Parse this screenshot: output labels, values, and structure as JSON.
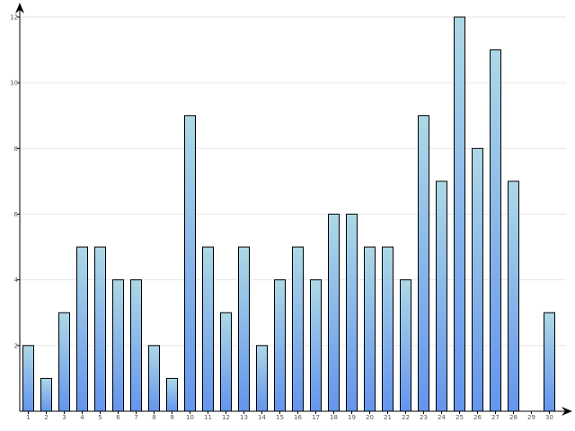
{
  "chart_data": {
    "type": "bar",
    "categories": [
      "1",
      "2",
      "3",
      "4",
      "5",
      "6",
      "7",
      "8",
      "9",
      "10",
      "11",
      "12",
      "13",
      "14",
      "15",
      "16",
      "17",
      "18",
      "19",
      "20",
      "21",
      "22",
      "23",
      "24",
      "25",
      "26",
      "27",
      "28",
      "29",
      "30"
    ],
    "values": [
      2,
      1,
      3,
      5,
      5,
      4,
      4,
      2,
      1,
      9,
      5,
      3,
      5,
      2,
      4,
      5,
      4,
      6,
      6,
      5,
      5,
      4,
      9,
      7,
      12,
      8,
      11,
      7,
      0,
      3
    ],
    "y_ticks": [
      "2",
      "4",
      "6",
      "8",
      "10",
      "12"
    ],
    "ylim": [
      0,
      12
    ],
    "grid": true,
    "title": "",
    "xlabel": "",
    "ylabel": "",
    "colors": {
      "bar_top": "#add8e6",
      "bar_bottom": "#6495ed",
      "bar_stroke": "#000000",
      "grid": "#e6e6e6",
      "axis": "#000000"
    }
  }
}
